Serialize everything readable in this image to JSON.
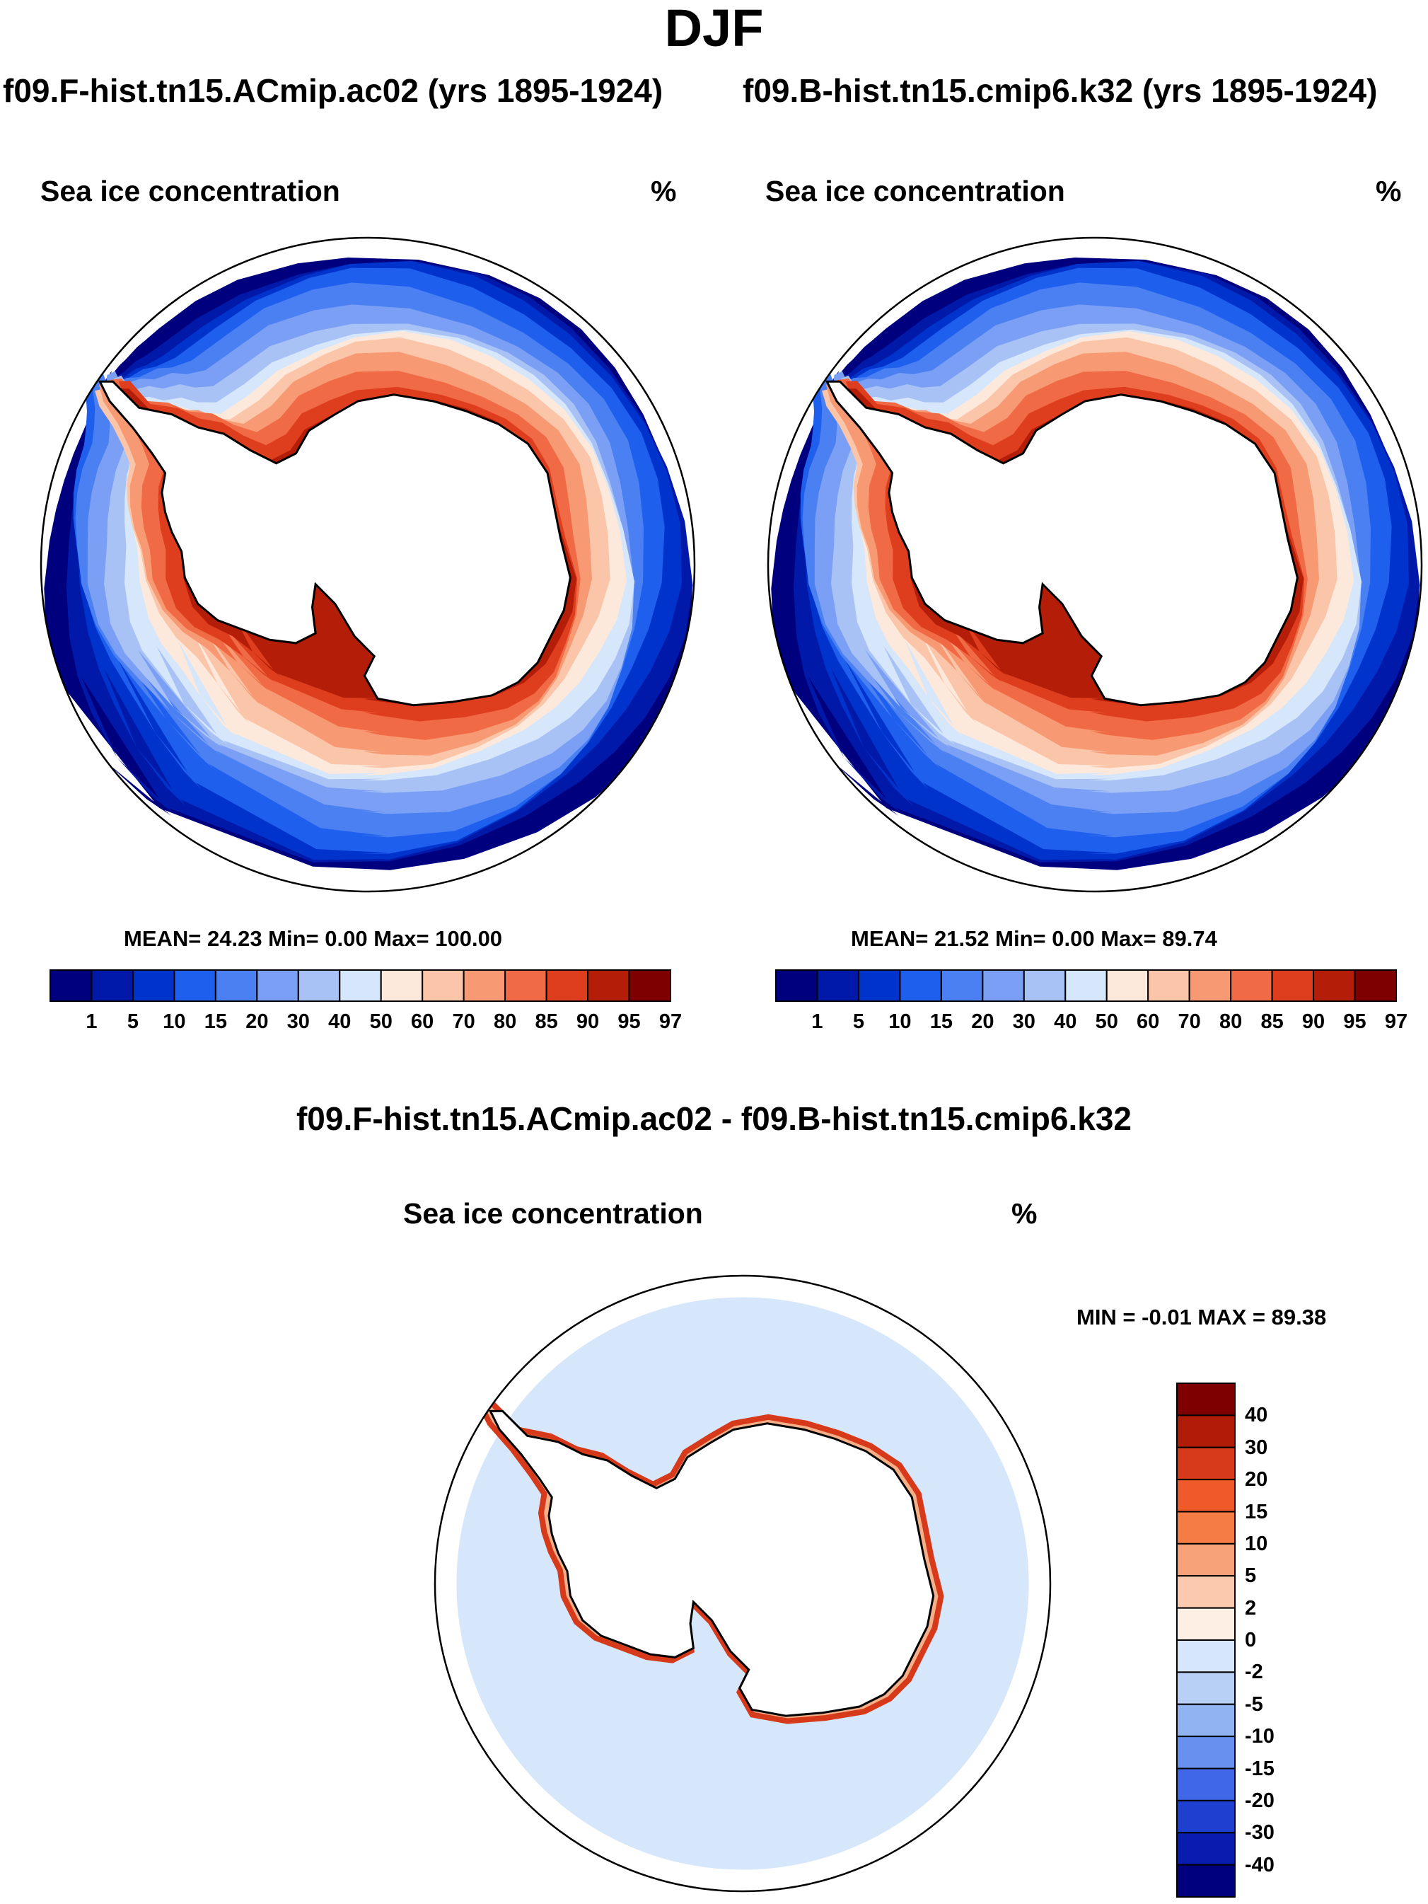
{
  "title": "DJF",
  "panels": [
    {
      "case_title": "f09.F-hist.tn15.ACmip.ac02 (yrs 1895-1924)",
      "variable": "Sea ice concentration",
      "units": "%",
      "stats": "MEAN=  24.23  Min=   0.00  Max= 100.00"
    },
    {
      "case_title": "f09.B-hist.tn15.cmip6.k32 (yrs 1895-1924)",
      "variable": "Sea ice concentration",
      "units": "%",
      "stats": "MEAN=  21.52  Min=   0.00  Max=  89.74"
    }
  ],
  "diff_panel": {
    "case_title": "f09.F-hist.tn15.ACmip.ac02 - f09.B-hist.tn15.cmip6.k32",
    "variable": "Sea ice concentration",
    "units": "%",
    "stats": "MIN =  -0.01 MAX =  89.38"
  },
  "chart_data": [
    {
      "type": "heatmap",
      "projection": "south-polar-stereographic",
      "title": "f09.F-hist.tn15.ACmip.ac02 (yrs 1895-1924)",
      "variable": "Sea ice concentration",
      "units": "%",
      "mean": 24.23,
      "min": 0.0,
      "max": 100.0,
      "levels": [
        "1",
        "5",
        "10",
        "15",
        "20",
        "30",
        "40",
        "50",
        "60",
        "70",
        "80",
        "85",
        "90",
        "95",
        "97"
      ],
      "colors": [
        "#00007f",
        "#0019a8",
        "#0033cc",
        "#1f5fee",
        "#4a80f2",
        "#7a9ff4",
        "#a8c2f6",
        "#d6e6fb",
        "#fde9dc",
        "#fbc5aa",
        "#f79a73",
        "#f06a45",
        "#de3e1d",
        "#b41d08",
        "#7f0000"
      ]
    },
    {
      "type": "heatmap",
      "projection": "south-polar-stereographic",
      "title": "f09.B-hist.tn15.cmip6.k32 (yrs 1895-1924)",
      "variable": "Sea ice concentration",
      "units": "%",
      "mean": 21.52,
      "min": 0.0,
      "max": 89.74,
      "levels": [
        "1",
        "5",
        "10",
        "15",
        "20",
        "30",
        "40",
        "50",
        "60",
        "70",
        "80",
        "85",
        "90",
        "95",
        "97"
      ],
      "colors": [
        "#00007f",
        "#0019a8",
        "#0033cc",
        "#1f5fee",
        "#4a80f2",
        "#7a9ff4",
        "#a8c2f6",
        "#d6e6fb",
        "#fde9dc",
        "#fbc5aa",
        "#f79a73",
        "#f06a45",
        "#de3e1d",
        "#b41d08",
        "#7f0000"
      ]
    },
    {
      "type": "heatmap",
      "projection": "south-polar-stereographic",
      "title": "f09.F-hist.tn15.ACmip.ac02 - f09.B-hist.tn15.cmip6.k32",
      "variable": "Sea ice concentration",
      "units": "%",
      "min": -0.01,
      "max": 89.38,
      "levels": [
        "40",
        "30",
        "20",
        "15",
        "10",
        "5",
        "2",
        "0",
        "-2",
        "-5",
        "-10",
        "-15",
        "-20",
        "-30",
        "-40"
      ],
      "colors": [
        "#7f0000",
        "#b01c08",
        "#d63a1a",
        "#f05a2a",
        "#f57c45",
        "#f8a27a",
        "#fbc9ae",
        "#fdefe3",
        "#d6e6fb",
        "#b8cff6",
        "#90b3f2",
        "#6890ef",
        "#3f67e8",
        "#1f3fd0",
        "#0a1cb0",
        "#00007f"
      ]
    }
  ]
}
